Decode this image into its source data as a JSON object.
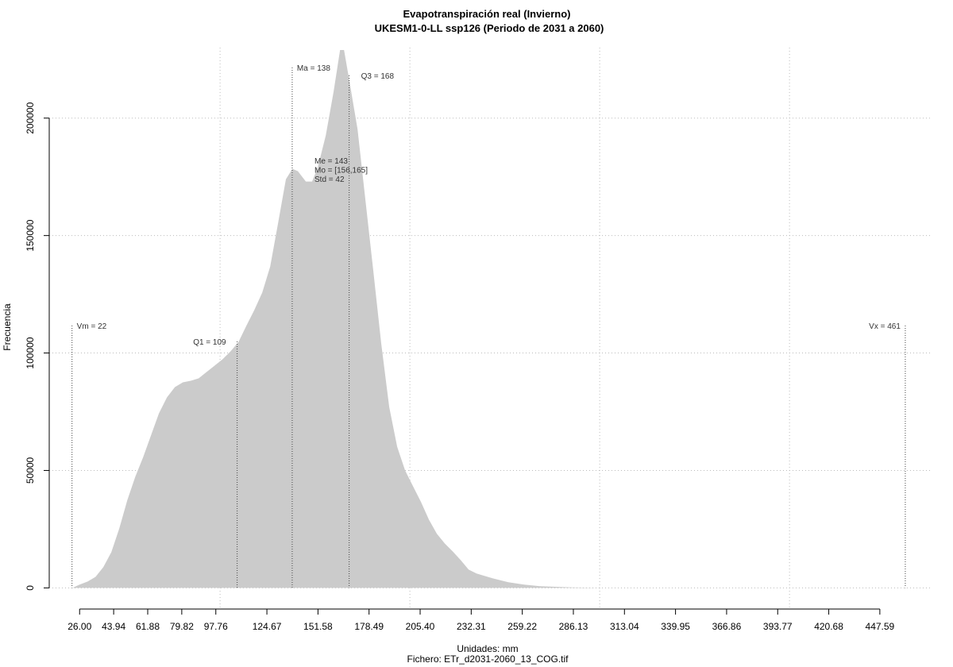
{
  "chart_data": {
    "type": "area",
    "title": "Evapotranspiración real (Invierno)",
    "subtitle": "UKESM1-0-LL ssp126 (Periodo de 2031 a 2060)",
    "x_label": "Unidades: mm",
    "caption": "Fichero: ETr_d2031-2060_13_COG.tif",
    "y_label": "Frecuencia",
    "color": "#cbcbcb",
    "grid": true,
    "x": [
      22.2,
      26,
      30.2,
      34.4,
      38.5,
      42.7,
      46.9,
      51.1,
      55.3,
      59.5,
      63.6,
      67.8,
      72,
      76.2,
      80.4,
      84.6,
      88.7,
      92.9,
      97.1,
      101.3,
      105.5,
      109.7,
      113.8,
      118,
      122.2,
      126.4,
      130.6,
      134.7,
      138.1,
      141,
      145.2,
      148.5,
      151.5,
      155.7,
      159.8,
      163.2,
      165.3,
      168.2,
      172.4,
      176.6,
      180.8,
      184.9,
      189.1,
      193.3,
      197.5,
      201.7,
      205.9,
      210,
      214.2,
      218.4,
      222.6,
      226.8,
      230.9,
      235.1,
      243.5,
      251.9,
      260.2,
      268.6,
      285.3,
      302.1,
      456.8
    ],
    "values": [
      0,
      1400,
      2700,
      4700,
      8800,
      15200,
      25300,
      37200,
      47300,
      55700,
      64900,
      74300,
      81100,
      85500,
      87500,
      88200,
      89200,
      91900,
      94600,
      97300,
      100700,
      104700,
      111500,
      118200,
      125700,
      136800,
      155400,
      174000,
      178400,
      177400,
      173000,
      173000,
      179100,
      192600,
      211100,
      229000,
      229000,
      215500,
      195300,
      164900,
      134500,
      104100,
      77000,
      60100,
      50000,
      43200,
      36500,
      29100,
      23000,
      18900,
      15500,
      11800,
      7800,
      6100,
      4100,
      2400,
      1400,
      700,
      200,
      0,
      0
    ],
    "xlim": [
      10,
      474
    ],
    "ylim": [
      -9000,
      230000
    ],
    "yticks": [
      0,
      50000,
      100000,
      150000,
      200000
    ],
    "xticks": [
      {
        "value": 26,
        "label": "26.00"
      },
      {
        "value": 43.94,
        "label": "43.94"
      },
      {
        "value": 61.88,
        "label": "61.88"
      },
      {
        "value": 79.82,
        "label": "79.82"
      },
      {
        "value": 97.76,
        "label": "97.76"
      },
      {
        "value": 124.67,
        "label": "124.67"
      },
      {
        "value": 151.58,
        "label": "151.58"
      },
      {
        "value": 178.49,
        "label": "178.49"
      },
      {
        "value": 205.4,
        "label": "205.40"
      },
      {
        "value": 232.31,
        "label": "232.31"
      },
      {
        "value": 259.22,
        "label": "259.22"
      },
      {
        "value": 286.13,
        "label": "286.13"
      },
      {
        "value": 313.04,
        "label": "313.04"
      },
      {
        "value": 339.95,
        "label": "339.95"
      },
      {
        "value": 366.86,
        "label": "366.86"
      },
      {
        "value": 393.77,
        "label": "393.77"
      },
      {
        "value": 420.68,
        "label": "420.68"
      },
      {
        "value": 447.59,
        "label": "447.59"
      }
    ],
    "xgrid": [
      100,
      200,
      300,
      400
    ],
    "markers": [
      {
        "label": "Vm = 22",
        "value": 22
      },
      {
        "label": "Q1 = 109",
        "value": 109
      },
      {
        "label": "Ma = 138",
        "value": 138
      },
      {
        "label": "Q3 = 168",
        "value": 168
      },
      {
        "label": "Vx = 461",
        "value": 461
      }
    ],
    "stats": [
      "Me = 143",
      "Mo = [156,165]",
      "Std = 42"
    ]
  }
}
